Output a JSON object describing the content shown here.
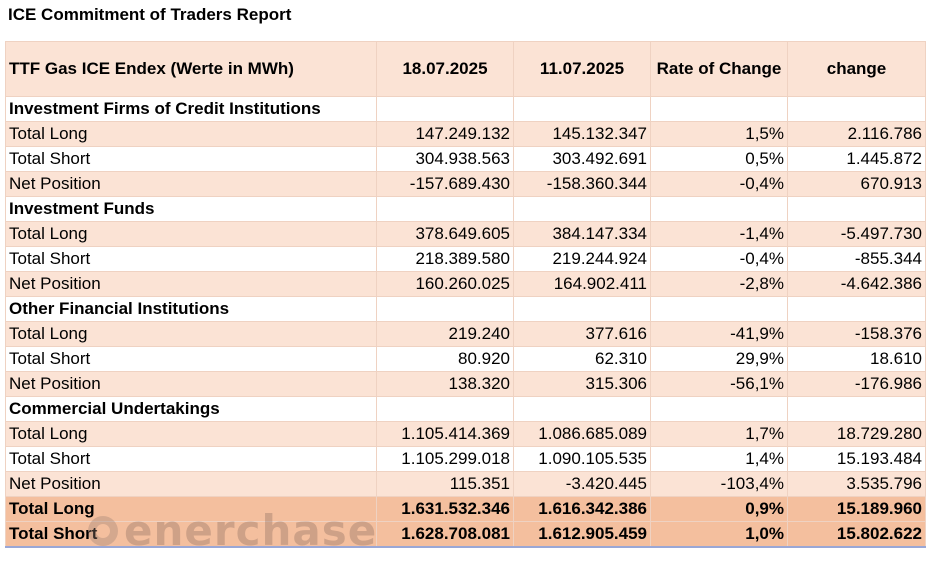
{
  "title": "ICE Commitment of Traders Report",
  "header": {
    "label": "TTF Gas ICE Endex (Werte in MWh)",
    "date1": "18.07.2025",
    "date2": "11.07.2025",
    "rate": "Rate of Change",
    "change": "change"
  },
  "sections": [
    {
      "name": "Investment Firms of Credit Institutions",
      "rows": [
        {
          "label": "Total Long",
          "v1": "147.249.132",
          "v2": "145.132.347",
          "rate": "1,5%",
          "change": "2.116.786"
        },
        {
          "label": "Total Short",
          "v1": "304.938.563",
          "v2": "303.492.691",
          "rate": "0,5%",
          "change": "1.445.872"
        },
        {
          "label": "Net Position",
          "v1": "-157.689.430",
          "v2": "-158.360.344",
          "rate": "-0,4%",
          "change": "670.913"
        }
      ]
    },
    {
      "name": "Investment Funds",
      "rows": [
        {
          "label": "Total Long",
          "v1": "378.649.605",
          "v2": "384.147.334",
          "rate": "-1,4%",
          "change": "-5.497.730"
        },
        {
          "label": "Total Short",
          "v1": "218.389.580",
          "v2": "219.244.924",
          "rate": "-0,4%",
          "change": "-855.344"
        },
        {
          "label": "Net Position",
          "v1": "160.260.025",
          "v2": "164.902.411",
          "rate": "-2,8%",
          "change": "-4.642.386"
        }
      ]
    },
    {
      "name": "Other Financial Institutions",
      "rows": [
        {
          "label": "Total Long",
          "v1": "219.240",
          "v2": "377.616",
          "rate": "-41,9%",
          "change": "-158.376"
        },
        {
          "label": "Total Short",
          "v1": "80.920",
          "v2": "62.310",
          "rate": "29,9%",
          "change": "18.610"
        },
        {
          "label": "Net Position",
          "v1": "138.320",
          "v2": "315.306",
          "rate": "-56,1%",
          "change": "-176.986"
        }
      ]
    },
    {
      "name": "Commercial Undertakings",
      "rows": [
        {
          "label": "Total Long",
          "v1": "1.105.414.369",
          "v2": "1.086.685.089",
          "rate": "1,7%",
          "change": "18.729.280"
        },
        {
          "label": "Total Short",
          "v1": "1.105.299.018",
          "v2": "1.090.105.535",
          "rate": "1,4%",
          "change": "15.193.484"
        },
        {
          "label": "Net Position",
          "v1": "115.351",
          "v2": "-3.420.445",
          "rate": "-103,4%",
          "change": "3.535.796"
        }
      ]
    }
  ],
  "totals": [
    {
      "label": "Total Long",
      "v1": "1.631.532.346",
      "v2": "1.616.342.386",
      "rate": "0,9%",
      "change": "15.189.960"
    },
    {
      "label": "Total Short",
      "v1": "1.628.708.081",
      "v2": "1.612.905.459",
      "rate": "1,0%",
      "change": "15.802.622"
    }
  ],
  "watermark": {
    "text": "enerchase",
    "icon": "enerchase-logo-icon"
  },
  "colors": {
    "header_bg": "#fbe3d5",
    "total_bg": "#f4bf9e",
    "border": "#efd2c2"
  }
}
